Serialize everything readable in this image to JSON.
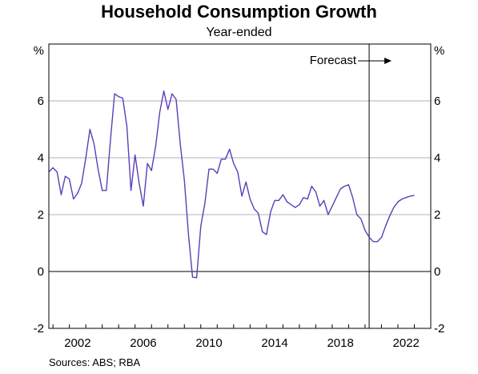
{
  "chart_data": {
    "type": "line",
    "title": "Household Consumption Growth",
    "subtitle": "Year-ended",
    "unit_left": "%",
    "unit_right": "%",
    "y_ticks": [
      "-2",
      "0",
      "2",
      "4",
      "6"
    ],
    "x_ticks": [
      "2002",
      "2006",
      "2010",
      "2014",
      "2018",
      "2022"
    ],
    "ylim": [
      -2,
      8
    ],
    "xlim": [
      1999.75,
      2023
    ],
    "grid": true,
    "forecast_label": "Forecast",
    "forecast_start": 2019.25,
    "source": "Sources:   ABS; RBA",
    "series": [
      {
        "color": "#5a3fb8",
        "points": [
          [
            1999.75,
            3.5
          ],
          [
            2000.0,
            3.65
          ],
          [
            2000.25,
            3.5
          ],
          [
            2000.5,
            2.7
          ],
          [
            2000.75,
            3.35
          ],
          [
            2001.0,
            3.25
          ],
          [
            2001.25,
            2.55
          ],
          [
            2001.5,
            2.75
          ],
          [
            2001.75,
            3.1
          ],
          [
            2002.0,
            4.0
          ],
          [
            2002.25,
            5.0
          ],
          [
            2002.5,
            4.5
          ],
          [
            2002.75,
            3.6
          ],
          [
            2003.0,
            2.85
          ],
          [
            2003.25,
            2.85
          ],
          [
            2003.5,
            4.6
          ],
          [
            2003.75,
            6.25
          ],
          [
            2004.0,
            6.15
          ],
          [
            2004.25,
            6.1
          ],
          [
            2004.5,
            5.1
          ],
          [
            2004.75,
            2.85
          ],
          [
            2005.0,
            4.1
          ],
          [
            2005.25,
            3.1
          ],
          [
            2005.5,
            2.3
          ],
          [
            2005.75,
            3.8
          ],
          [
            2006.0,
            3.55
          ],
          [
            2006.25,
            4.4
          ],
          [
            2006.5,
            5.6
          ],
          [
            2006.75,
            6.35
          ],
          [
            2007.0,
            5.7
          ],
          [
            2007.25,
            6.25
          ],
          [
            2007.5,
            6.05
          ],
          [
            2007.75,
            4.5
          ],
          [
            2008.0,
            3.2
          ],
          [
            2008.25,
            1.3
          ],
          [
            2008.5,
            -0.2
          ],
          [
            2008.75,
            -0.22
          ],
          [
            2009.0,
            1.6
          ],
          [
            2009.25,
            2.4
          ],
          [
            2009.5,
            3.6
          ],
          [
            2009.75,
            3.6
          ],
          [
            2010.0,
            3.45
          ],
          [
            2010.25,
            3.95
          ],
          [
            2010.5,
            3.95
          ],
          [
            2010.75,
            4.3
          ],
          [
            2011.0,
            3.8
          ],
          [
            2011.25,
            3.5
          ],
          [
            2011.5,
            2.65
          ],
          [
            2011.75,
            3.15
          ],
          [
            2012.0,
            2.55
          ],
          [
            2012.25,
            2.2
          ],
          [
            2012.5,
            2.05
          ],
          [
            2012.75,
            1.4
          ],
          [
            2013.0,
            1.3
          ],
          [
            2013.25,
            2.1
          ],
          [
            2013.5,
            2.5
          ],
          [
            2013.75,
            2.5
          ],
          [
            2014.0,
            2.7
          ],
          [
            2014.25,
            2.45
          ],
          [
            2014.5,
            2.35
          ],
          [
            2014.75,
            2.25
          ],
          [
            2015.0,
            2.35
          ],
          [
            2015.25,
            2.6
          ],
          [
            2015.5,
            2.55
          ],
          [
            2015.75,
            3.0
          ],
          [
            2016.0,
            2.8
          ],
          [
            2016.25,
            2.3
          ],
          [
            2016.5,
            2.5
          ],
          [
            2016.75,
            2.0
          ],
          [
            2017.0,
            2.3
          ],
          [
            2017.25,
            2.6
          ],
          [
            2017.5,
            2.9
          ],
          [
            2017.75,
            3.0
          ],
          [
            2018.0,
            3.05
          ],
          [
            2018.25,
            2.6
          ],
          [
            2018.5,
            2.0
          ],
          [
            2018.75,
            1.85
          ],
          [
            2019.0,
            1.45
          ],
          [
            2019.25,
            1.2
          ],
          [
            2019.5,
            1.05
          ],
          [
            2019.75,
            1.05
          ],
          [
            2020.0,
            1.2
          ],
          [
            2020.25,
            1.6
          ],
          [
            2020.5,
            1.95
          ],
          [
            2020.75,
            2.25
          ],
          [
            2021.0,
            2.45
          ],
          [
            2021.25,
            2.55
          ],
          [
            2021.5,
            2.6
          ],
          [
            2021.75,
            2.65
          ],
          [
            2022.0,
            2.68
          ]
        ]
      }
    ]
  }
}
